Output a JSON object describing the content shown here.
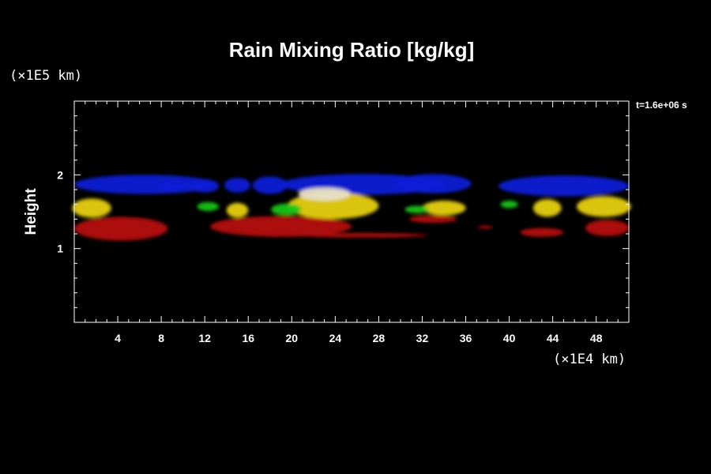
{
  "chart_data": {
    "type": "heatmap",
    "title": "Rain Mixing Ratio [kg/kg]",
    "xlabel": "",
    "ylabel": "Height",
    "x_unit": "(×1E4 km)",
    "y_unit": "(×1E5 km)",
    "time_label": "t=1.6e+06 s",
    "xlim": [
      0,
      51
    ],
    "ylim": [
      0,
      3
    ],
    "x_ticks": [
      4,
      8,
      12,
      16,
      20,
      24,
      28,
      32,
      36,
      40,
      44,
      48
    ],
    "y_ticks": [
      1,
      2
    ],
    "colors": {
      "blue": "#0b1fd6",
      "red": "#b5120f",
      "yellow": "#e6cf12",
      "green": "#19c419",
      "white": "#e8e0c8"
    },
    "regions": [
      {
        "color": "blue",
        "cx": 6.5,
        "cy": 1.87,
        "rx": 6.5,
        "ry": 0.13
      },
      {
        "color": "blue",
        "cx": 9.2,
        "cy": 1.84,
        "rx": 1.2,
        "ry": 0.06
      },
      {
        "color": "blue",
        "cx": 12.0,
        "cy": 1.85,
        "rx": 1.3,
        "ry": 0.09
      },
      {
        "color": "blue",
        "cx": 15.0,
        "cy": 1.86,
        "rx": 1.2,
        "ry": 0.1
      },
      {
        "color": "blue",
        "cx": 18.0,
        "cy": 1.86,
        "rx": 1.6,
        "ry": 0.12
      },
      {
        "color": "blue",
        "cx": 26.5,
        "cy": 1.87,
        "rx": 7.5,
        "ry": 0.14
      },
      {
        "color": "blue",
        "cx": 33.0,
        "cy": 1.88,
        "rx": 3.5,
        "ry": 0.13
      },
      {
        "color": "blue",
        "cx": 45.0,
        "cy": 1.85,
        "rx": 6.0,
        "ry": 0.14
      },
      {
        "color": "red",
        "cx": 4.3,
        "cy": 1.27,
        "rx": 4.3,
        "ry": 0.16
      },
      {
        "color": "red",
        "cx": 19.0,
        "cy": 1.3,
        "rx": 6.5,
        "ry": 0.14
      },
      {
        "color": "red",
        "cx": 26.5,
        "cy": 1.18,
        "rx": 6.0,
        "ry": 0.03
      },
      {
        "color": "red",
        "cx": 33.0,
        "cy": 1.4,
        "rx": 2.2,
        "ry": 0.05
      },
      {
        "color": "red",
        "cx": 37.8,
        "cy": 1.29,
        "rx": 0.7,
        "ry": 0.02
      },
      {
        "color": "red",
        "cx": 43.0,
        "cy": 1.22,
        "rx": 2.0,
        "ry": 0.06
      },
      {
        "color": "red",
        "cx": 49.0,
        "cy": 1.28,
        "rx": 2.0,
        "ry": 0.11
      },
      {
        "color": "yellow",
        "cx": 1.6,
        "cy": 1.55,
        "rx": 1.8,
        "ry": 0.13
      },
      {
        "color": "yellow",
        "cx": 15.0,
        "cy": 1.52,
        "rx": 1.0,
        "ry": 0.1
      },
      {
        "color": "yellow",
        "cx": 23.8,
        "cy": 1.58,
        "rx": 4.2,
        "ry": 0.18
      },
      {
        "color": "yellow",
        "cx": 34.0,
        "cy": 1.55,
        "rx": 2.0,
        "ry": 0.1
      },
      {
        "color": "yellow",
        "cx": 43.5,
        "cy": 1.55,
        "rx": 1.3,
        "ry": 0.12
      },
      {
        "color": "yellow",
        "cx": 48.7,
        "cy": 1.57,
        "rx": 2.5,
        "ry": 0.14
      },
      {
        "color": "green",
        "cx": 12.3,
        "cy": 1.57,
        "rx": 1.0,
        "ry": 0.06
      },
      {
        "color": "green",
        "cx": 19.5,
        "cy": 1.53,
        "rx": 1.4,
        "ry": 0.08
      },
      {
        "color": "green",
        "cx": 31.5,
        "cy": 1.53,
        "rx": 1.1,
        "ry": 0.05
      },
      {
        "color": "green",
        "cx": 40.0,
        "cy": 1.6,
        "rx": 0.8,
        "ry": 0.05
      },
      {
        "color": "white",
        "cx": 23.0,
        "cy": 1.74,
        "rx": 2.4,
        "ry": 0.09
      }
    ]
  }
}
